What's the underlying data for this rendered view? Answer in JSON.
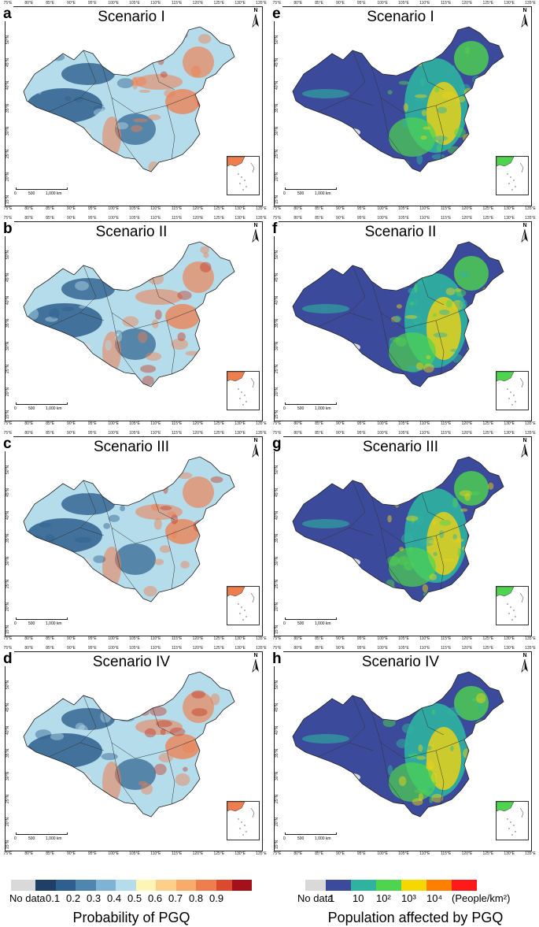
{
  "panels": [
    {
      "letter": "a",
      "title": "Scenario I"
    },
    {
      "letter": "b",
      "title": "Scenario II"
    },
    {
      "letter": "c",
      "title": "Scenario III"
    },
    {
      "letter": "d",
      "title": "Scenario IV"
    },
    {
      "letter": "e",
      "title": "Scenario I"
    },
    {
      "letter": "f",
      "title": "Scenario II"
    },
    {
      "letter": "g",
      "title": "Scenario III"
    },
    {
      "letter": "h",
      "title": "Scenario IV"
    }
  ],
  "lon_labels": [
    "75°E",
    "80°E",
    "85°E",
    "90°E",
    "95°E",
    "100°E",
    "105°E",
    "110°E",
    "115°E",
    "120°E",
    "125°E",
    "130°E",
    "135°E"
  ],
  "lat_labels": [
    "50°N",
    "45°N",
    "40°N",
    "35°N",
    "30°N",
    "25°N",
    "20°N",
    "15°N"
  ],
  "north_label": "N",
  "scale_labels": [
    "0",
    "500",
    "1,000 km"
  ],
  "legend_left": {
    "caption": "Probability of PGQ",
    "colors": [
      "#d9d9d9",
      "#1f3f66",
      "#2e5f8e",
      "#4f86b0",
      "#7fb3d5",
      "#b5dceb",
      "#fdf5b5",
      "#fdd08a",
      "#f9ab6a",
      "#ef7e4e",
      "#d94a2e",
      "#a3121a"
    ],
    "tick_labels": [
      "No data",
      "0.1",
      "0.2",
      "0.3",
      "0.4",
      "0.5",
      "0.6",
      "0.7",
      "0.8",
      "0.9"
    ]
  },
  "legend_right": {
    "caption": "Population affected by PGQ",
    "colors": [
      "#d9d9d9",
      "#3b4a9b",
      "#2fb3a0",
      "#4fd44f",
      "#f5d800",
      "#ff8000",
      "#ff1a1a"
    ],
    "tick_labels": [
      "No data",
      "1",
      "10",
      "10²",
      "10³",
      "10⁴",
      "(People/km²)"
    ]
  },
  "map_colors": {
    "prob_low": "#2e5f8e",
    "prob_mid": "#b5dceb",
    "prob_high": "#ef7e4e",
    "prob_hot": "#c33a25",
    "pop_base": "#3b4a9b",
    "pop_teal": "#2fb3a0",
    "pop_green": "#4fd44f",
    "pop_yellow": "#e8d11a",
    "nodata": "#d9d9d9"
  }
}
